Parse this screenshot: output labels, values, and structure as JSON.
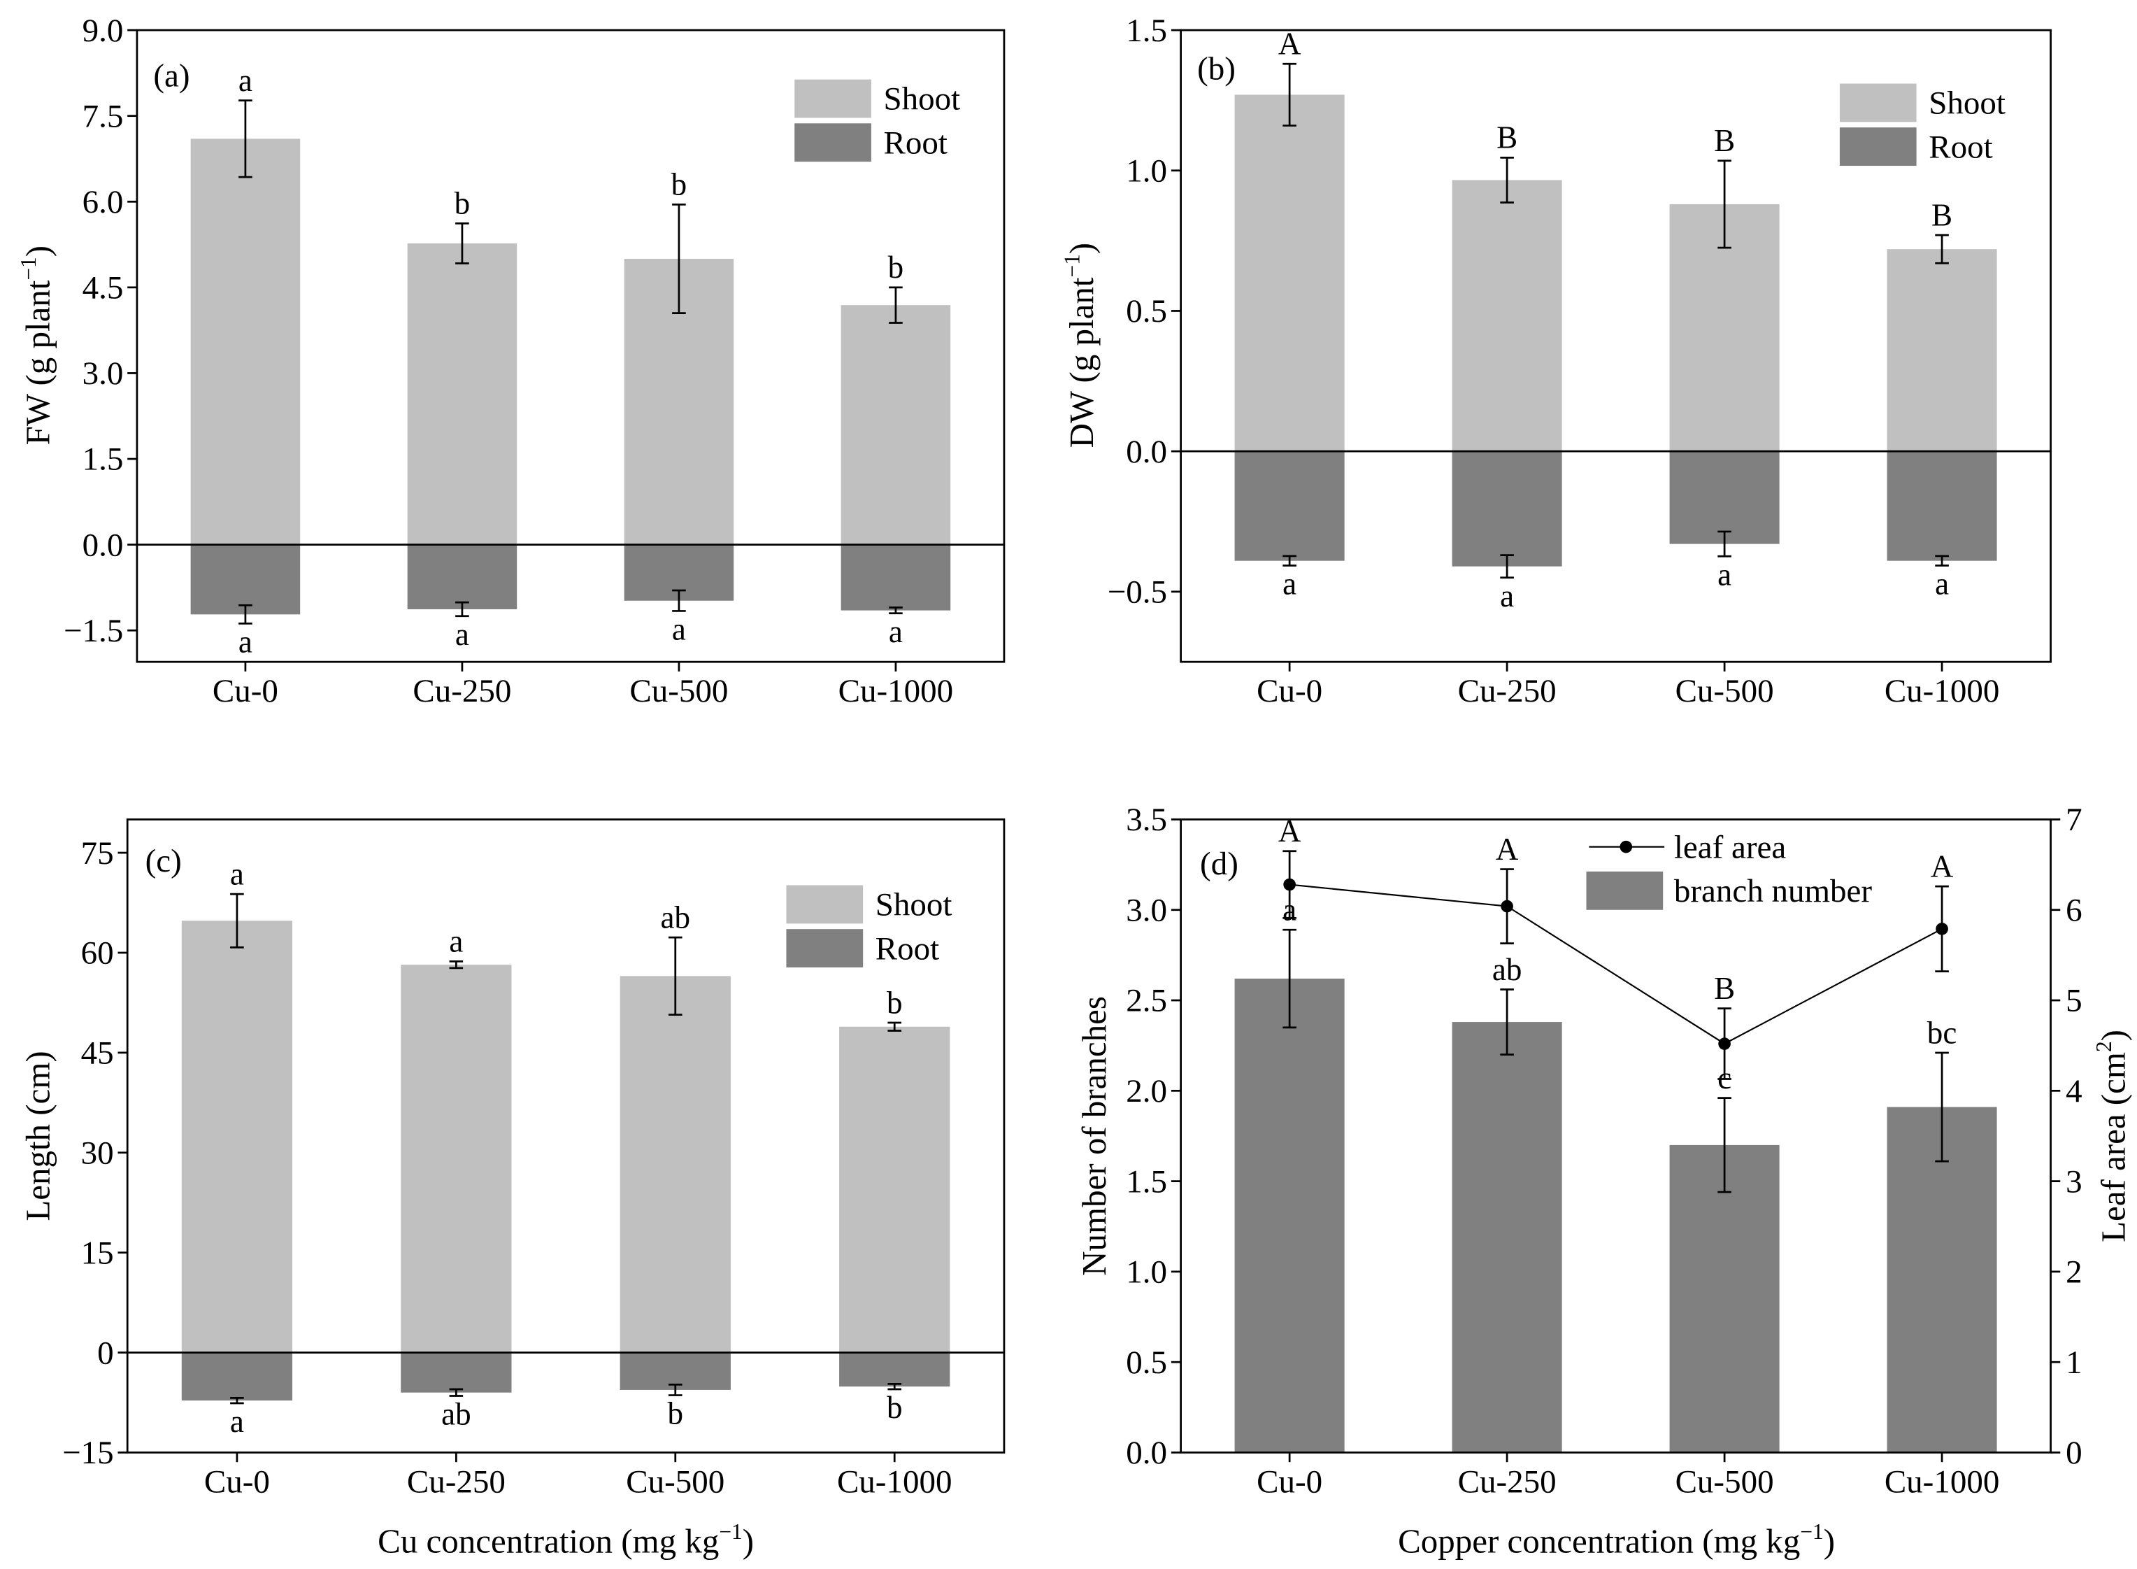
{
  "chart_data": [
    {
      "panel": "(a)",
      "type": "bar",
      "categories": [
        "Cu-0",
        "Cu-250",
        "Cu-500",
        "Cu-1000"
      ],
      "ylabel": {
        "text": "FW (g plant",
        "sup": "−1",
        "end": ")"
      },
      "ylim": [
        -2.05,
        9.0
      ],
      "yticks": [
        -1.5,
        0,
        1.5,
        3.0,
        4.5,
        6.0,
        7.5,
        9.0
      ],
      "ytick_labels": [
        "−1.5",
        "0.0",
        "1.5",
        "3.0",
        "4.5",
        "6.0",
        "7.5",
        "9.0"
      ],
      "legend_position": "top-right",
      "series": [
        {
          "name": "Shoot",
          "type": "bar",
          "color": "#c0c0c0",
          "values": [
            7.1,
            5.27,
            5.0,
            4.19
          ],
          "errors": [
            0.67,
            0.35,
            0.95,
            0.31
          ],
          "letters": [
            "a",
            "b",
            "b",
            "b"
          ]
        },
        {
          "name": "Root",
          "type": "bar",
          "color": "#808080",
          "values": [
            -1.22,
            -1.13,
            -0.98,
            -1.15
          ],
          "errors": [
            0.16,
            0.12,
            0.18,
            0.05
          ],
          "letters": [
            "a",
            "a",
            "a",
            "a"
          ]
        }
      ]
    },
    {
      "panel": "(b)",
      "type": "bar",
      "categories": [
        "Cu-0",
        "Cu-250",
        "Cu-500",
        "Cu-1000"
      ],
      "ylabel": {
        "text": "DW (g plant",
        "sup": "−1",
        "end": ")"
      },
      "ylim": [
        -0.75,
        1.5
      ],
      "yticks": [
        -0.5,
        0,
        0.5,
        1.0,
        1.5
      ],
      "ytick_labels": [
        "−0.5",
        "0.0",
        "0.5",
        "1.0",
        "1.5"
      ],
      "legend_position": "top-right",
      "series": [
        {
          "name": "Shoot",
          "type": "bar",
          "color": "#c0c0c0",
          "values": [
            1.27,
            0.966,
            0.88,
            0.72
          ],
          "errors": [
            0.11,
            0.08,
            0.155,
            0.05
          ],
          "letters": [
            "A",
            "B",
            "B",
            "B"
          ]
        },
        {
          "name": "Root",
          "type": "bar",
          "color": "#808080",
          "values": [
            -0.39,
            -0.41,
            -0.33,
            -0.39
          ],
          "errors": [
            0.017,
            0.04,
            0.044,
            0.017
          ],
          "letters": [
            "a",
            "a",
            "a",
            "a"
          ]
        }
      ]
    },
    {
      "panel": "(c)",
      "type": "bar",
      "categories": [
        "Cu-0",
        "Cu-250",
        "Cu-500",
        "Cu-1000"
      ],
      "ylabel": {
        "text": "Length (cm)"
      },
      "xlabel": {
        "text": "Cu concentration (mg kg",
        "sup": "−1",
        "end": ")"
      },
      "ylim": [
        -15,
        80
      ],
      "yticks": [
        -15,
        0,
        15,
        30,
        45,
        60,
        75
      ],
      "ytick_labels": [
        "−15",
        "0",
        "15",
        "30",
        "45",
        "60",
        "75"
      ],
      "legend_position": "top-right",
      "series": [
        {
          "name": "Shoot",
          "type": "bar",
          "color": "#c0c0c0",
          "values": [
            64.8,
            58.2,
            56.5,
            48.9
          ],
          "errors": [
            4.0,
            0.5,
            5.8,
            0.6
          ],
          "letters": [
            "a",
            "a",
            "ab",
            "b"
          ]
        },
        {
          "name": "Root",
          "type": "bar",
          "color": "#808080",
          "values": [
            -7.2,
            -6.0,
            -5.6,
            -5.1
          ],
          "errors": [
            0.4,
            0.5,
            0.8,
            0.4
          ],
          "letters": [
            "a",
            "ab",
            "b",
            "b"
          ]
        }
      ]
    },
    {
      "panel": "(d)",
      "type": "bar",
      "categories": [
        "Cu-0",
        "Cu-250",
        "Cu-500",
        "Cu-1000"
      ],
      "ylabel": {
        "text": "Number of branches"
      },
      "y2label": {
        "text": "Leaf area (cm",
        "sup": "2",
        "end": ")"
      },
      "xlabel": {
        "text": "Copper concentration (mg kg",
        "sup": "−1",
        "end": ")"
      },
      "ylim": [
        0,
        3.5
      ],
      "y2lim": [
        0,
        7
      ],
      "yticks": [
        0,
        0.5,
        1.0,
        1.5,
        2.0,
        2.5,
        3.0,
        3.5
      ],
      "ytick_labels": [
        "0.0",
        "0.5",
        "1.0",
        "1.5",
        "2.0",
        "2.5",
        "3.0",
        "3.5"
      ],
      "y2ticks": [
        0,
        1,
        2,
        3,
        4,
        5,
        6,
        7
      ],
      "y2tick_labels": [
        "0",
        "1",
        "2",
        "3",
        "4",
        "5",
        "6",
        "7"
      ],
      "legend_position": "top-center",
      "series": [
        {
          "name": "leaf area",
          "type": "line",
          "color": "#000000",
          "values": [
            6.28,
            6.04,
            4.52,
            5.79
          ],
          "errors": [
            0.37,
            0.41,
            0.39,
            0.47
          ],
          "letters": [
            "A",
            "A",
            "B",
            "A"
          ]
        },
        {
          "name": "branch number",
          "type": "bar",
          "color": "#808080",
          "values": [
            2.62,
            2.38,
            1.7,
            1.91
          ],
          "errors": [
            0.27,
            0.18,
            0.26,
            0.3
          ],
          "letters": [
            "a",
            "ab",
            "c",
            "bc"
          ]
        }
      ]
    }
  ]
}
